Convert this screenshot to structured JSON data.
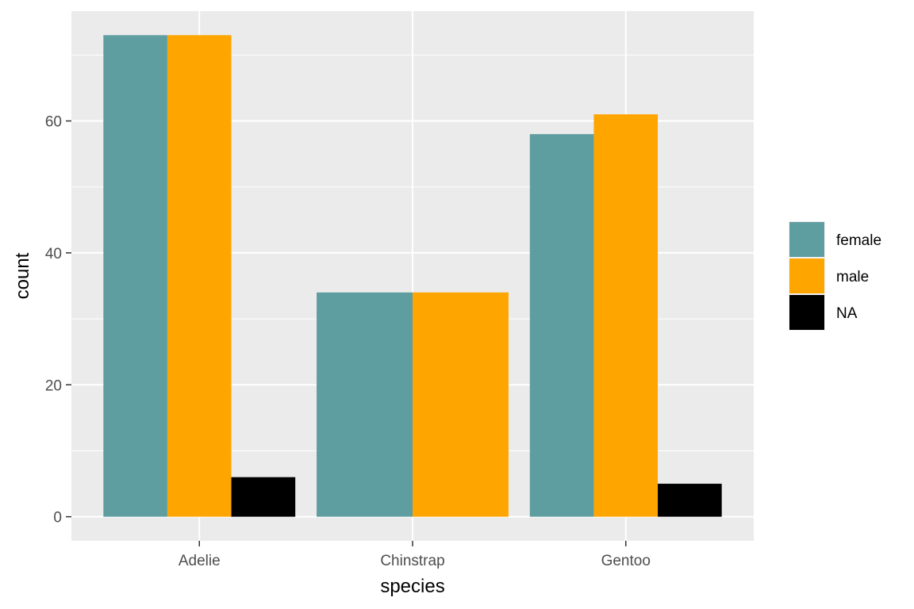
{
  "chart_data": {
    "type": "bar",
    "categories": [
      "Adelie",
      "Chinstrap",
      "Gentoo"
    ],
    "series": [
      {
        "name": "female",
        "color": "#5f9ea0",
        "values": [
          73,
          34,
          58
        ]
      },
      {
        "name": "male",
        "color": "#ffa500",
        "values": [
          73,
          34,
          61
        ]
      },
      {
        "name": "NA",
        "color": "#000000",
        "values": [
          6,
          null,
          5
        ]
      }
    ],
    "xlabel": "species",
    "ylabel": "count",
    "yticks": [
      0,
      20,
      40,
      60
    ],
    "ylim": [
      -3.65,
      76.65
    ],
    "grid": true,
    "legend_position": "right",
    "panel_color": "#ebebeb"
  }
}
